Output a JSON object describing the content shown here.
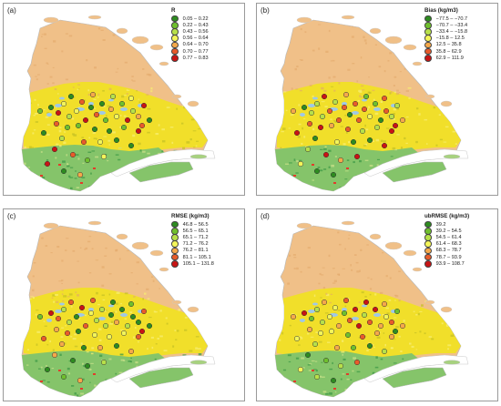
{
  "panels": [
    {
      "label": "(a)",
      "legend_title": "R",
      "classes": [
        {
          "label": "0.05 – 0.22",
          "color": "#2e8b20"
        },
        {
          "label": "0.22 – 0.43",
          "color": "#6fbf2e"
        },
        {
          "label": "0.43 – 0.56",
          "color": "#b7e04a"
        },
        {
          "label": "0.56 – 0.64",
          "color": "#f3f55a"
        },
        {
          "label": "0.64 – 0.70",
          "color": "#f5a94a"
        },
        {
          "label": "0.70 – 0.77",
          "color": "#e85b2a"
        },
        {
          "label": "0.77 – 0.83",
          "color": "#c81414"
        }
      ]
    },
    {
      "label": "(b)",
      "legend_title": "Bias (kg/m3)",
      "classes": [
        {
          "label": "−77.5 – −70.7",
          "color": "#2e8b20"
        },
        {
          "label": "−70.7 – −33.4",
          "color": "#6fbf2e"
        },
        {
          "label": "−33.4 – −15.8",
          "color": "#b7e04a"
        },
        {
          "label": "−15.8 – 12.5",
          "color": "#f3f55a"
        },
        {
          "label": "12.5 – 35.8",
          "color": "#f5a94a"
        },
        {
          "label": "35.8 – 62.9",
          "color": "#e85b2a"
        },
        {
          "label": "62.9 – 111.9",
          "color": "#c81414"
        }
      ]
    },
    {
      "label": "(c)",
      "legend_title": "RMSE (kg/m3)",
      "classes": [
        {
          "label": "46.8 – 56.5",
          "color": "#2e8b20"
        },
        {
          "label": "56.5 – 65.1",
          "color": "#6fbf2e"
        },
        {
          "label": "65.1 – 71.2",
          "color": "#b7e04a"
        },
        {
          "label": "71.2 – 76.2",
          "color": "#f3f55a"
        },
        {
          "label": "76.2 – 81.1",
          "color": "#f5a94a"
        },
        {
          "label": "81.1 – 105.1",
          "color": "#e85b2a"
        },
        {
          "label": "105.1 – 131.8",
          "color": "#c81414"
        }
      ]
    },
    {
      "label": "(d)",
      "legend_title": "ubRMSE (kg/m3)",
      "classes": [
        {
          "label": "39.2",
          "color": "#2e8b20"
        },
        {
          "label": "39.2 – 54.5",
          "color": "#6fbf2e"
        },
        {
          "label": "54.5 – 61.4",
          "color": "#b7e04a"
        },
        {
          "label": "61.4 – 68.3",
          "color": "#f3f55a"
        },
        {
          "label": "68.3 – 78.7",
          "color": "#f5a94a"
        },
        {
          "label": "78.7 – 93.9",
          "color": "#e85b2a"
        },
        {
          "label": "93.9 – 108.7",
          "color": "#c81414"
        }
      ]
    }
  ],
  "map_colors": {
    "northern_zone": "#f0c088",
    "boreal_zone": "#f1df2a",
    "southern_forest": "#85c46a",
    "southern_forest_dark": "#3f9a47",
    "water": "#9fc8e6",
    "urban": "#e23b2b"
  }
}
